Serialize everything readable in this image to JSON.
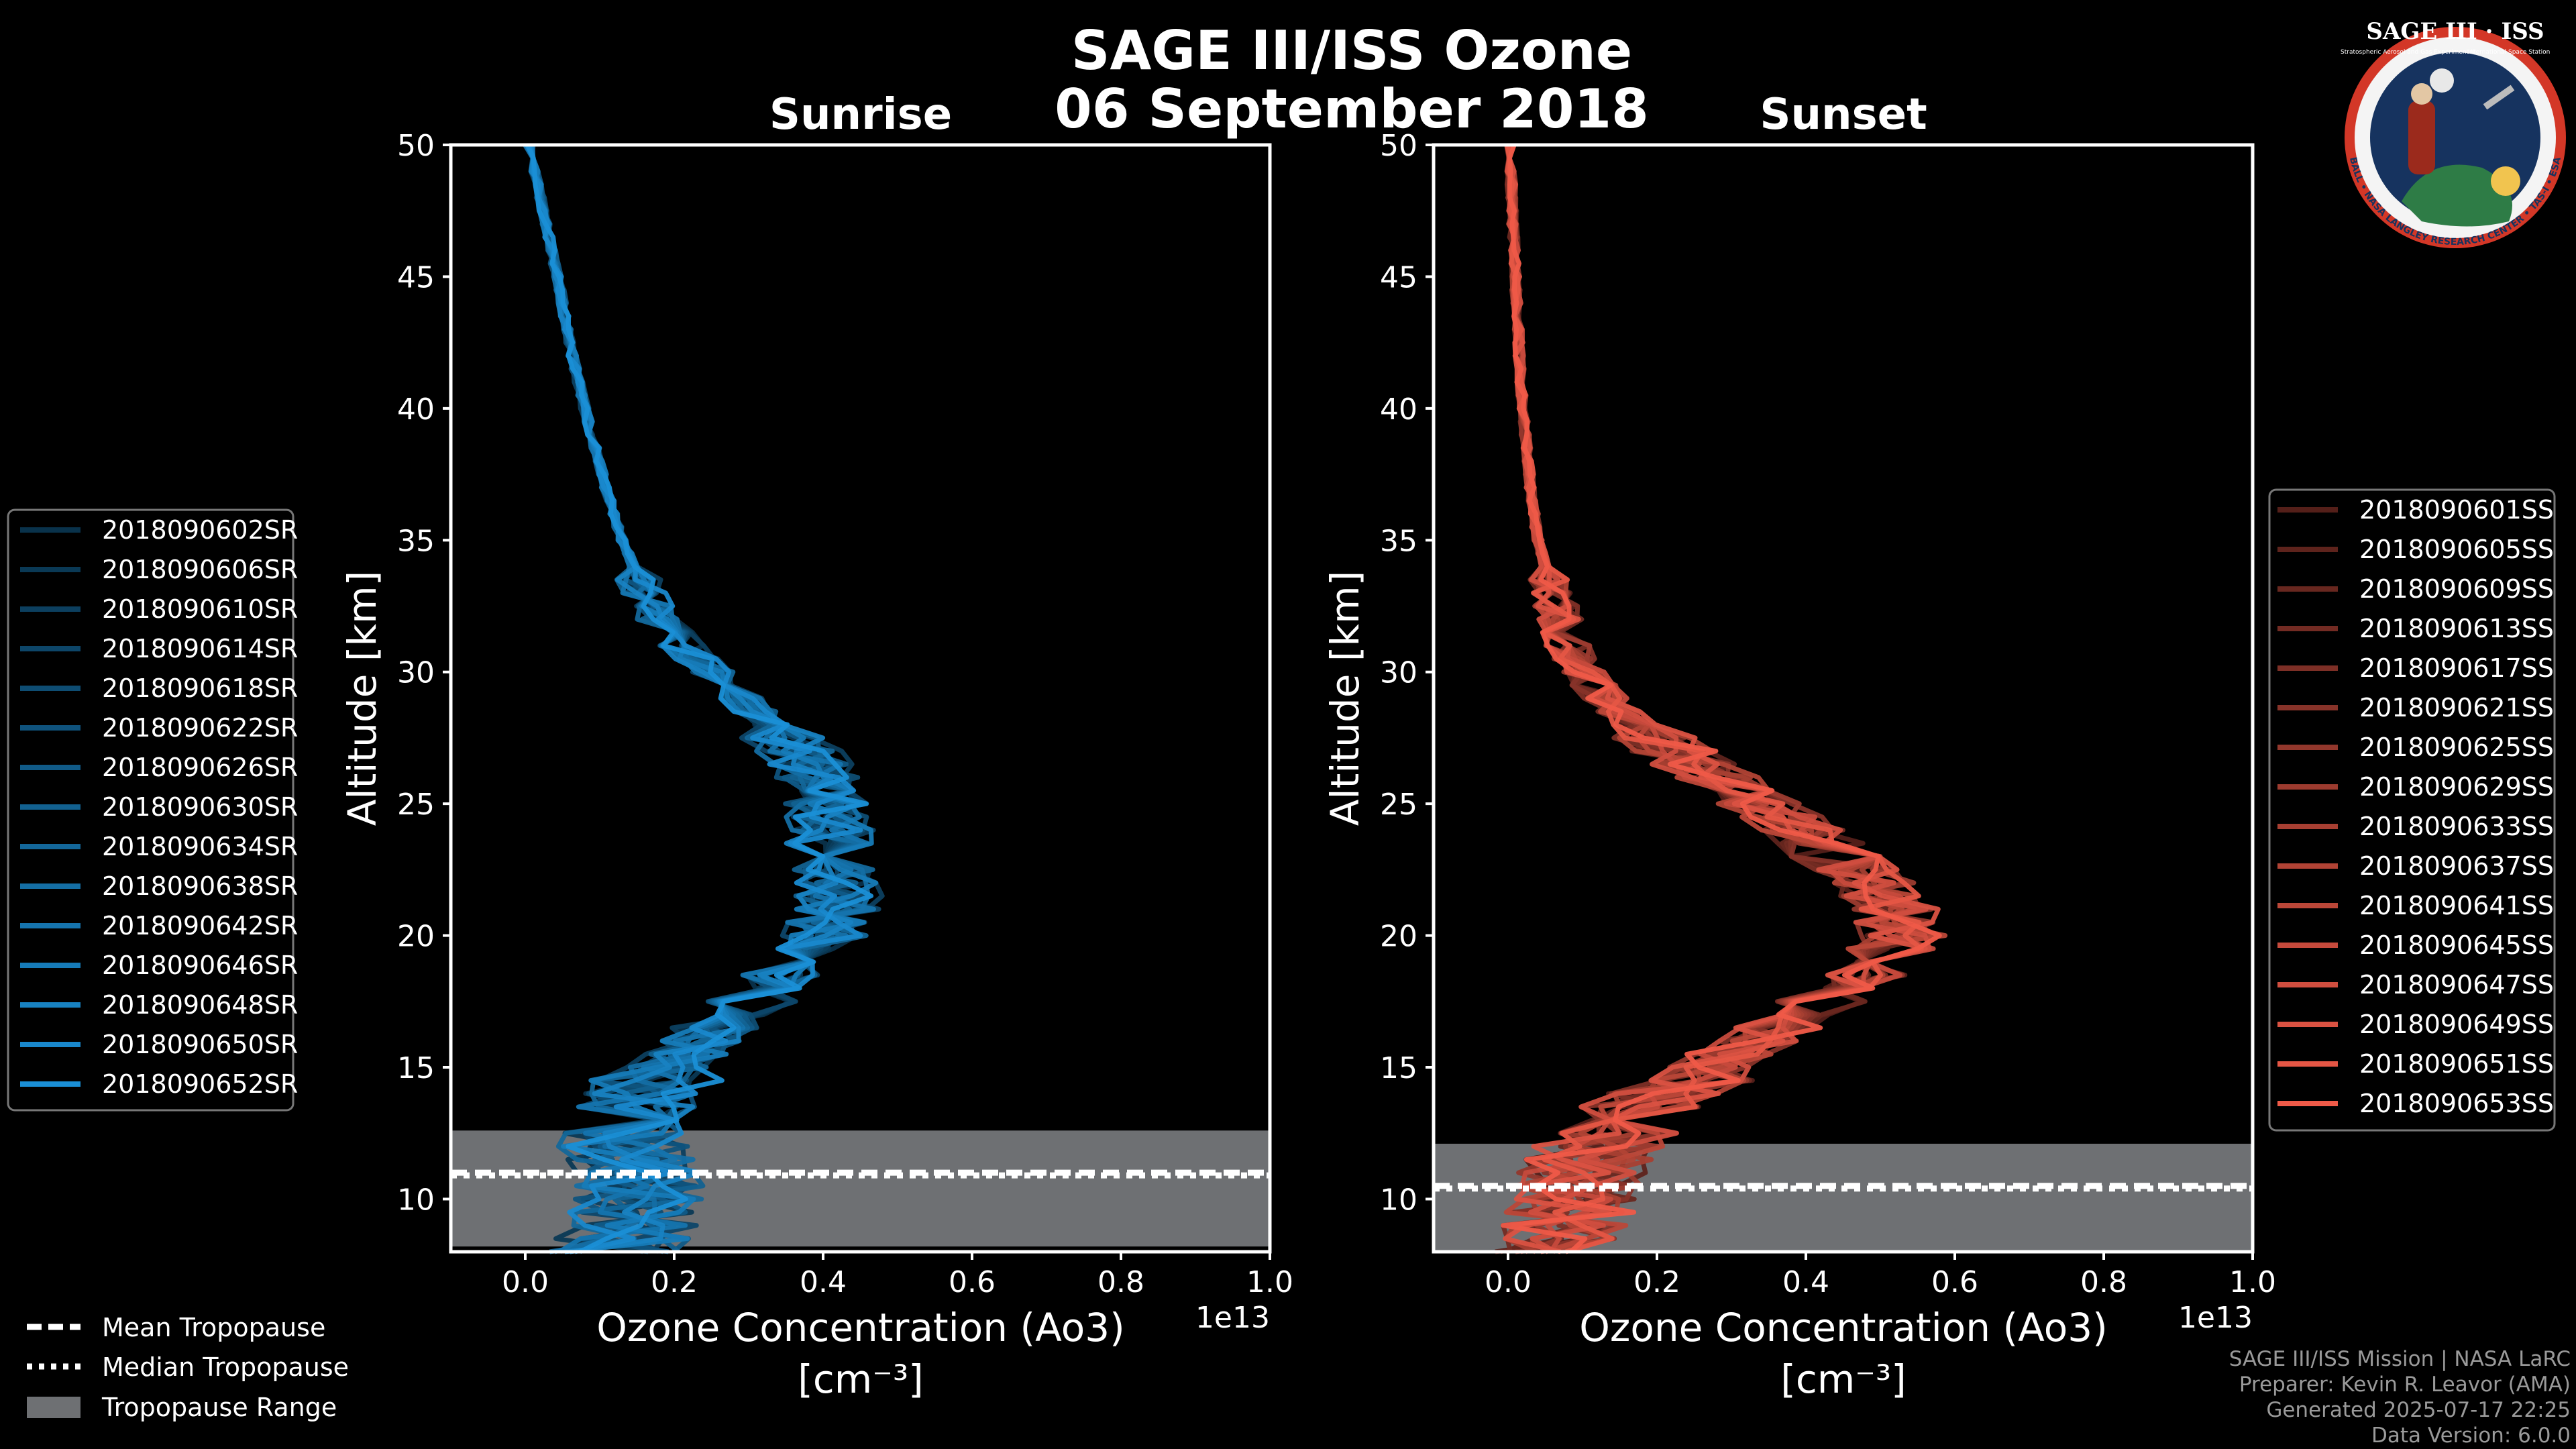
{
  "chart_data": {
    "type": "line",
    "title_line1": "SAGE III/ISS Ozone",
    "title_line2": "06 September 2018",
    "xlabel_line1": "Ozone Concentration (Ao3)",
    "xlabel_line2": "[cm⁻³]",
    "ylabel": "Altitude [km]",
    "x_scale_label": "1e13",
    "xlim": [
      -0.1,
      1.0
    ],
    "ylim": [
      8,
      50
    ],
    "xticks": [
      "0.0",
      "0.2",
      "0.4",
      "0.6",
      "0.8",
      "1.0"
    ],
    "yticks": [
      "10",
      "15",
      "20",
      "25",
      "30",
      "35",
      "40",
      "45",
      "50"
    ],
    "panels": [
      {
        "name": "Sunrise",
        "title": "Sunrise",
        "color": "#1a8fd6",
        "tropopause": {
          "mean": 11.0,
          "median": 10.9,
          "min": 8.2,
          "max": 12.6
        },
        "events": [
          "2018090602SR",
          "2018090606SR",
          "2018090610SR",
          "2018090614SR",
          "2018090618SR",
          "2018090622SR",
          "2018090626SR",
          "2018090630SR",
          "2018090634SR",
          "2018090638SR",
          "2018090642SR",
          "2018090646SR",
          "2018090648SR",
          "2018090650SR",
          "2018090652SR"
        ],
        "mean_profile": {
          "alt": [
            8,
            9,
            10,
            11,
            12,
            13,
            14,
            15,
            16,
            17,
            18,
            19,
            20,
            21,
            22,
            23,
            24,
            25,
            26,
            27,
            28,
            29,
            30,
            31,
            32,
            33,
            34,
            35,
            37,
            40,
            42,
            45,
            48,
            50
          ],
          "o3": [
            0.12,
            0.14,
            0.15,
            0.15,
            0.13,
            0.14,
            0.16,
            0.19,
            0.23,
            0.28,
            0.33,
            0.37,
            0.4,
            0.42,
            0.42,
            0.41,
            0.41,
            0.4,
            0.39,
            0.37,
            0.33,
            0.29,
            0.25,
            0.21,
            0.18,
            0.16,
            0.145,
            0.13,
            0.108,
            0.08,
            0.063,
            0.043,
            0.02,
            0.005
          ]
        }
      },
      {
        "name": "Sunset",
        "title": "Sunset",
        "color": "#ef5a48",
        "tropopause": {
          "mean": 10.5,
          "median": 10.4,
          "min": 8.0,
          "max": 12.1
        },
        "events": [
          "2018090601SS",
          "2018090605SS",
          "2018090609SS",
          "2018090613SS",
          "2018090617SS",
          "2018090621SS",
          "2018090625SS",
          "2018090629SS",
          "2018090633SS",
          "2018090637SS",
          "2018090641SS",
          "2018090645SS",
          "2018090647SS",
          "2018090649SS",
          "2018090651SS",
          "2018090653SS"
        ],
        "mean_profile": {
          "alt": [
            8,
            9,
            10,
            11,
            12,
            13,
            14,
            15,
            16,
            17,
            18,
            19,
            20,
            21,
            22,
            23,
            24,
            25,
            26,
            27,
            28,
            29,
            30,
            31,
            32,
            33,
            34,
            35,
            37,
            40,
            42,
            45,
            48,
            50
          ],
          "o3": [
            0.07,
            0.08,
            0.09,
            0.1,
            0.12,
            0.16,
            0.21,
            0.27,
            0.33,
            0.39,
            0.45,
            0.5,
            0.53,
            0.52,
            0.49,
            0.44,
            0.4,
            0.34,
            0.28,
            0.22,
            0.17,
            0.13,
            0.1,
            0.08,
            0.07,
            0.06,
            0.05,
            0.04,
            0.03,
            0.02,
            0.015,
            0.01,
            0.005,
            0.003
          ]
        }
      }
    ],
    "legend": {
      "mean_label": "Mean Tropopause",
      "median_label": "Median Tropopause",
      "range_label": "Tropopause Range"
    }
  },
  "logo": {
    "title": "SAGE III · ISS",
    "small_1": "Stratospheric Aerosol and Gas Experiment III",
    "small_2": "International Space Station",
    "ring": "BALL • NASA LANGLEY RESEARCH CENTER • TAS-I • ESA"
  },
  "credits": {
    "line1": "SAGE III/ISS Mission | NASA LaRC",
    "line2": "Preparer: Kevin R. Leavor (AMA)",
    "line3": "Generated 2025-07-17 22:25",
    "line4": "Data Version: 6.0.0"
  }
}
